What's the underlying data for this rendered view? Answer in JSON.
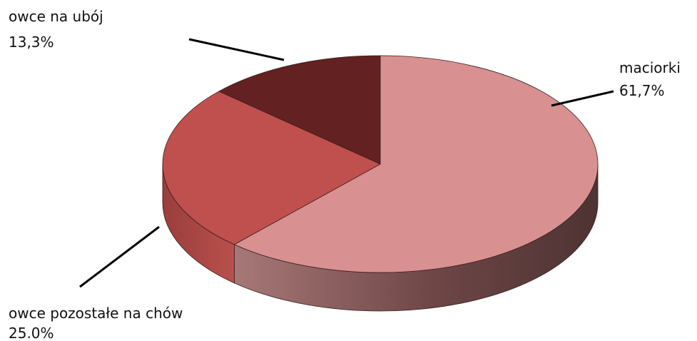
{
  "chart_data": {
    "type": "pie",
    "variant": "3d",
    "title": "",
    "start_angle_deg": 0,
    "direction": "clockwise",
    "slices": [
      {
        "label": "maciorki",
        "value": 61.7,
        "value_label": "61,7%",
        "color": "#d89090"
      },
      {
        "label": "owce pozostałe na chów",
        "value": 25.0,
        "value_label": "25.0%",
        "color": "#c0504d"
      },
      {
        "label": "owce na ubój",
        "value": 13.3,
        "value_label": "13,3%",
        "color": "#632121"
      }
    ]
  }
}
